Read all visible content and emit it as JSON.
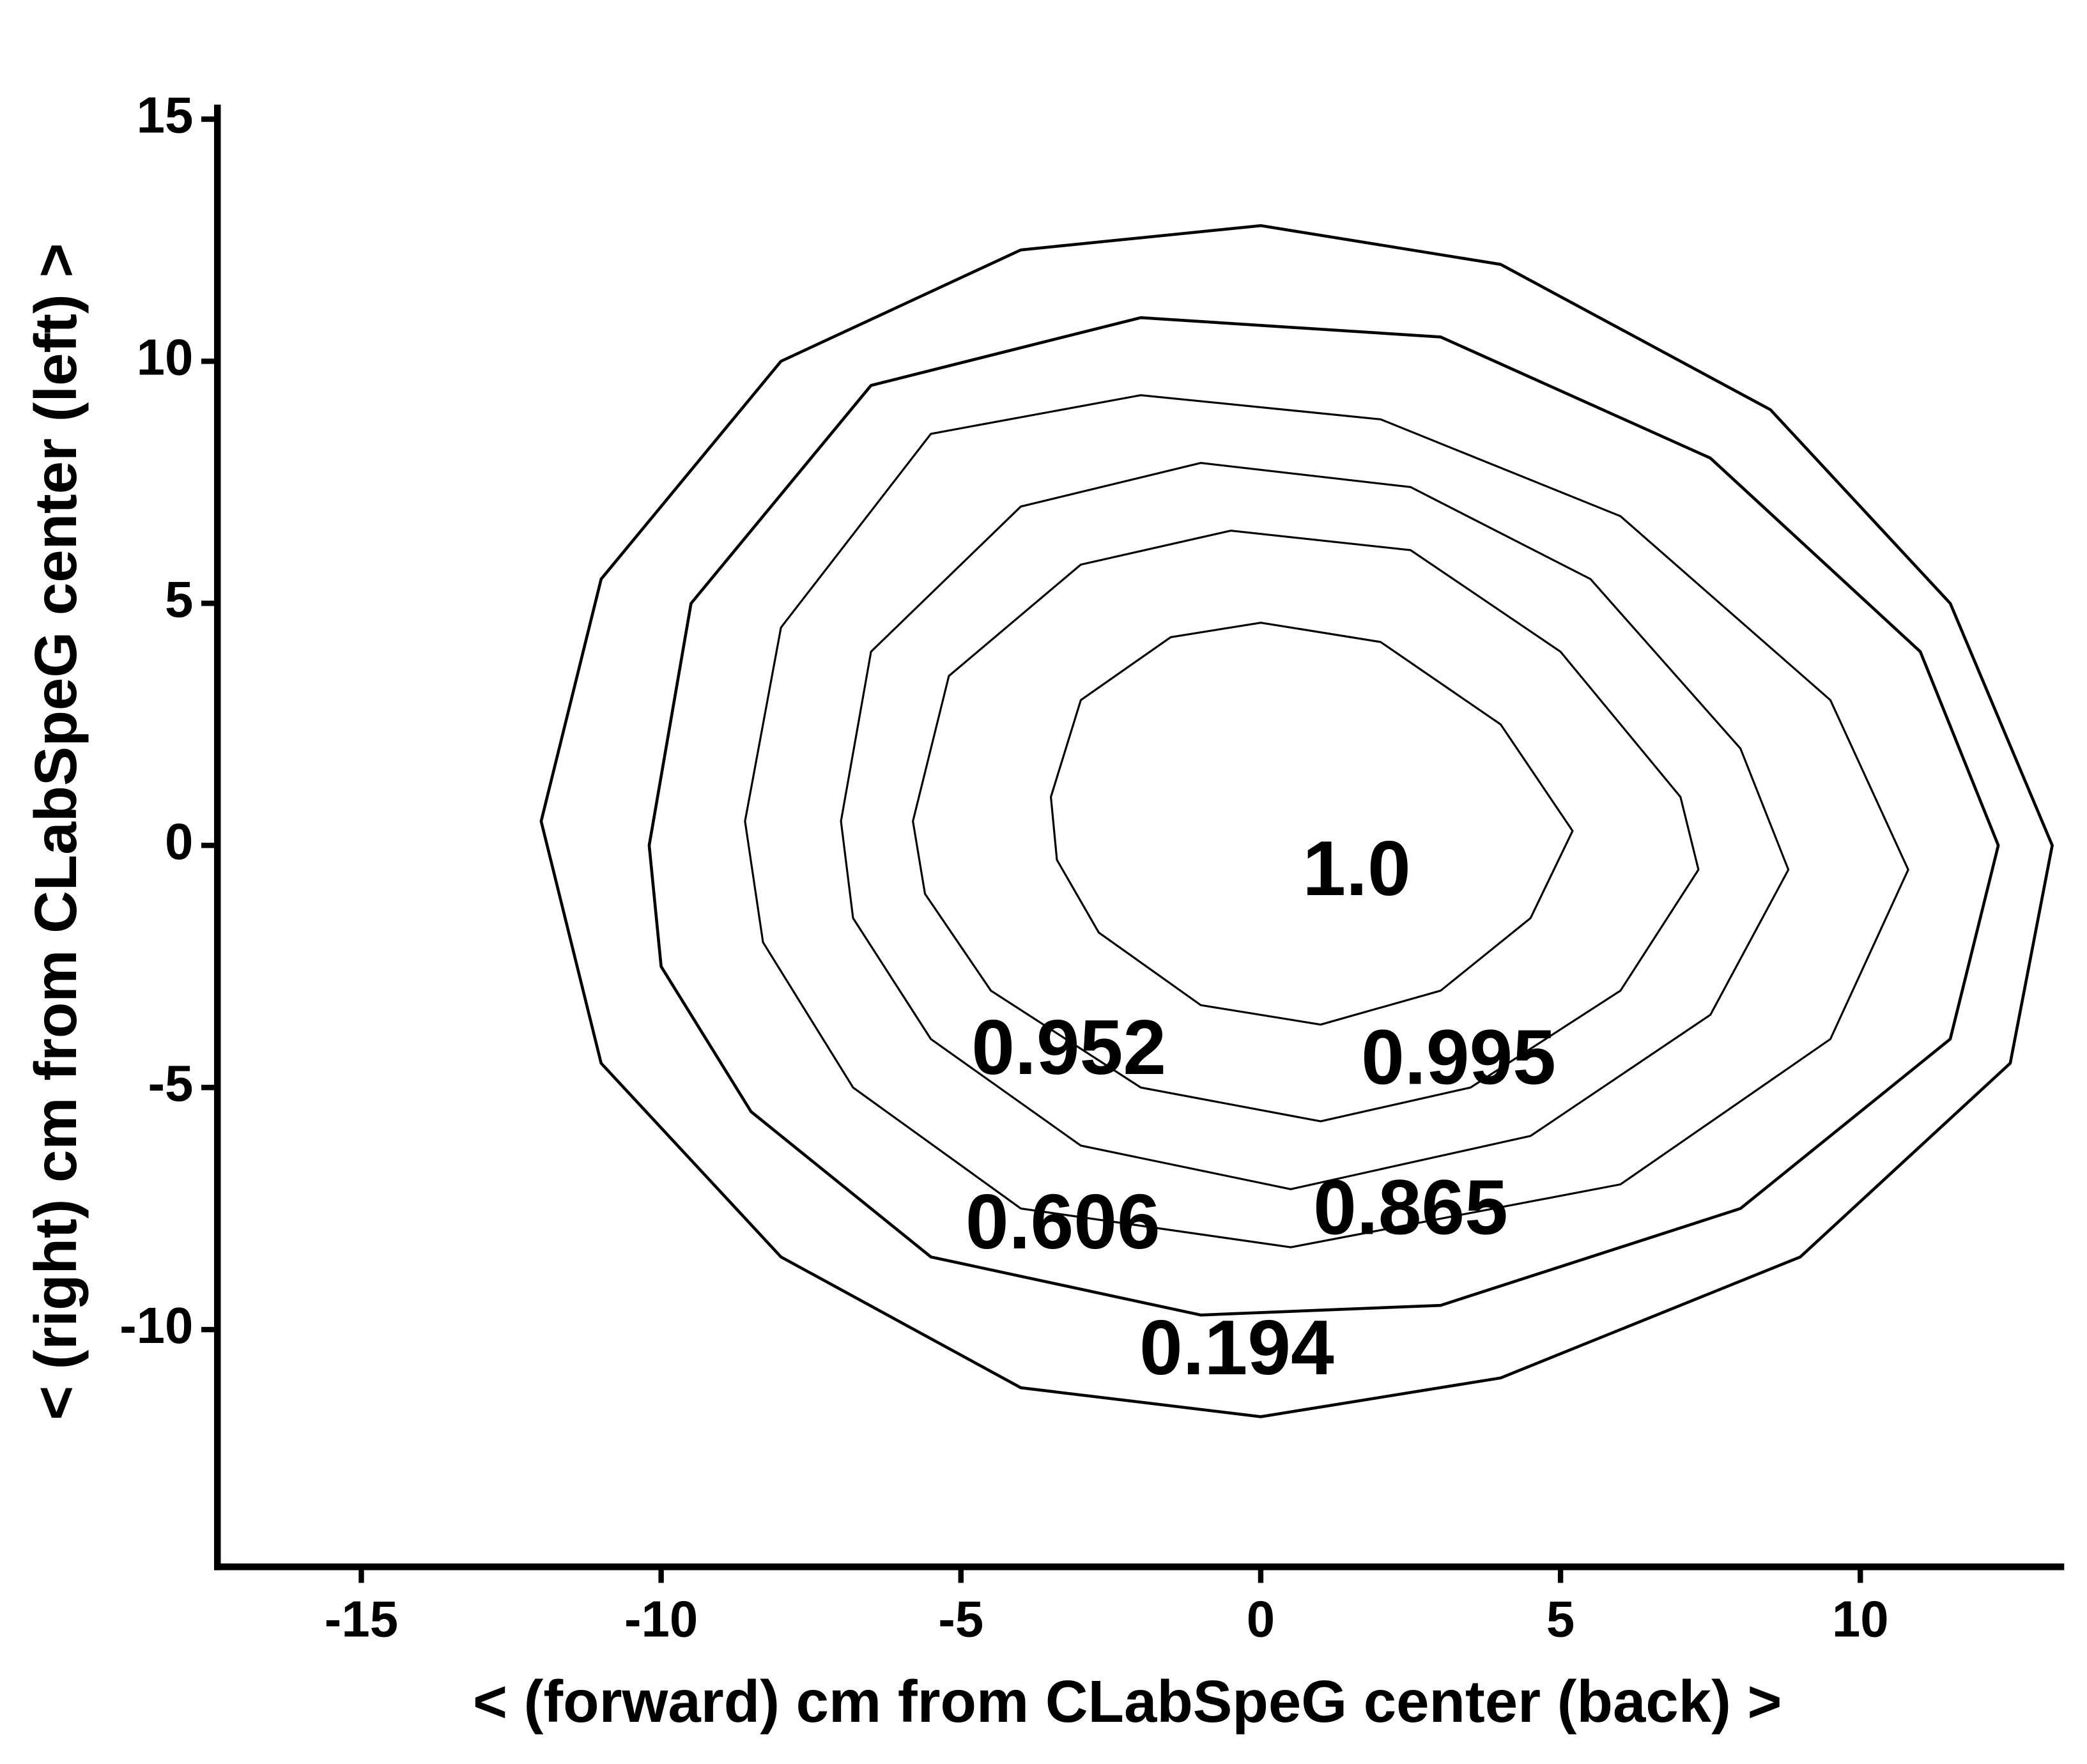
{
  "chart_data": {
    "type": "contour",
    "xlabel": "< (forward) cm from CLabSpeG center (back) >",
    "ylabel": "< (right) cm from CLabSpeG center (left) >",
    "xlim": [
      -17.4,
      13.4
    ],
    "ylim": [
      -14.9,
      15.3
    ],
    "xticks": [
      -15,
      -10,
      -5,
      0,
      5,
      10
    ],
    "yticks": [
      -10,
      -5,
      0,
      5,
      10,
      15
    ],
    "color": "#000000",
    "levels": [
      1,
      0.995,
      0.952,
      0.865,
      0.606,
      0.194
    ],
    "value_labels": [
      "1.0",
      "0.995",
      "0.952",
      "0.865",
      "0.606",
      "0.194"
    ],
    "contours": [
      {
        "x": [
          -3.5,
          -3,
          -1.5,
          0,
          2,
          4,
          5.2,
          4.5,
          3,
          1,
          -1,
          -2.7,
          -3.4
        ],
        "y": [
          1,
          3,
          4.3,
          4.6,
          4.2,
          2.5,
          0.3,
          -1.5,
          -3,
          -3.7,
          -3.3,
          -1.8,
          -0.3
        ]
      },
      {
        "x": [
          -5.8,
          -5.2,
          -3,
          -0.5,
          2.5,
          5,
          7,
          7.3,
          6,
          3.5,
          1,
          -2,
          -4.5,
          -5.6
        ],
        "y": [
          0.5,
          3.5,
          5.8,
          6.5,
          6.1,
          4,
          1,
          -0.5,
          -3,
          -5,
          -5.7,
          -5,
          -3,
          -1
        ]
      },
      {
        "x": [
          -7,
          -6.5,
          -4,
          -1,
          2.5,
          5.5,
          8,
          8.8,
          7.5,
          4.5,
          0.5,
          -3,
          -5.5,
          -6.8
        ],
        "y": [
          0.5,
          4,
          7,
          7.9,
          7.4,
          5.5,
          2,
          -0.5,
          -3.5,
          -6,
          -7.1,
          -6.2,
          -4,
          -1.5
        ]
      },
      {
        "x": [
          -8.6,
          -8,
          -5.5,
          -2,
          2,
          6,
          9.5,
          10.8,
          9.5,
          6,
          0.5,
          -4,
          -6.8,
          -8.3
        ],
        "y": [
          0.5,
          4.5,
          8.5,
          9.3,
          8.8,
          6.8,
          3,
          -0.5,
          -4,
          -7,
          -8.3,
          -7.5,
          -5,
          -2
        ]
      },
      {
        "x": [
          -10.2,
          -9.5,
          -6.5,
          -2,
          3,
          7.5,
          11,
          12.3,
          11.5,
          8,
          3,
          -1,
          -5.5,
          -8.5,
          -10
        ],
        "y": [
          0,
          5,
          9.5,
          10.9,
          10.5,
          8,
          4,
          0,
          -4,
          -7.5,
          -9.5,
          -9.7,
          -8.5,
          -5.5,
          -2.5
        ]
      },
      {
        "x": [
          -12,
          -11,
          -8,
          -4,
          0,
          4,
          8.5,
          11.5,
          13.2,
          12.5,
          9,
          4,
          0,
          -4,
          -8,
          -11
        ],
        "y": [
          0.5,
          5.5,
          10,
          12.3,
          12.8,
          12,
          9,
          5,
          0,
          -4.5,
          -8.5,
          -11,
          -11.8,
          -11.2,
          -8.5,
          -4.5
        ]
      }
    ]
  }
}
